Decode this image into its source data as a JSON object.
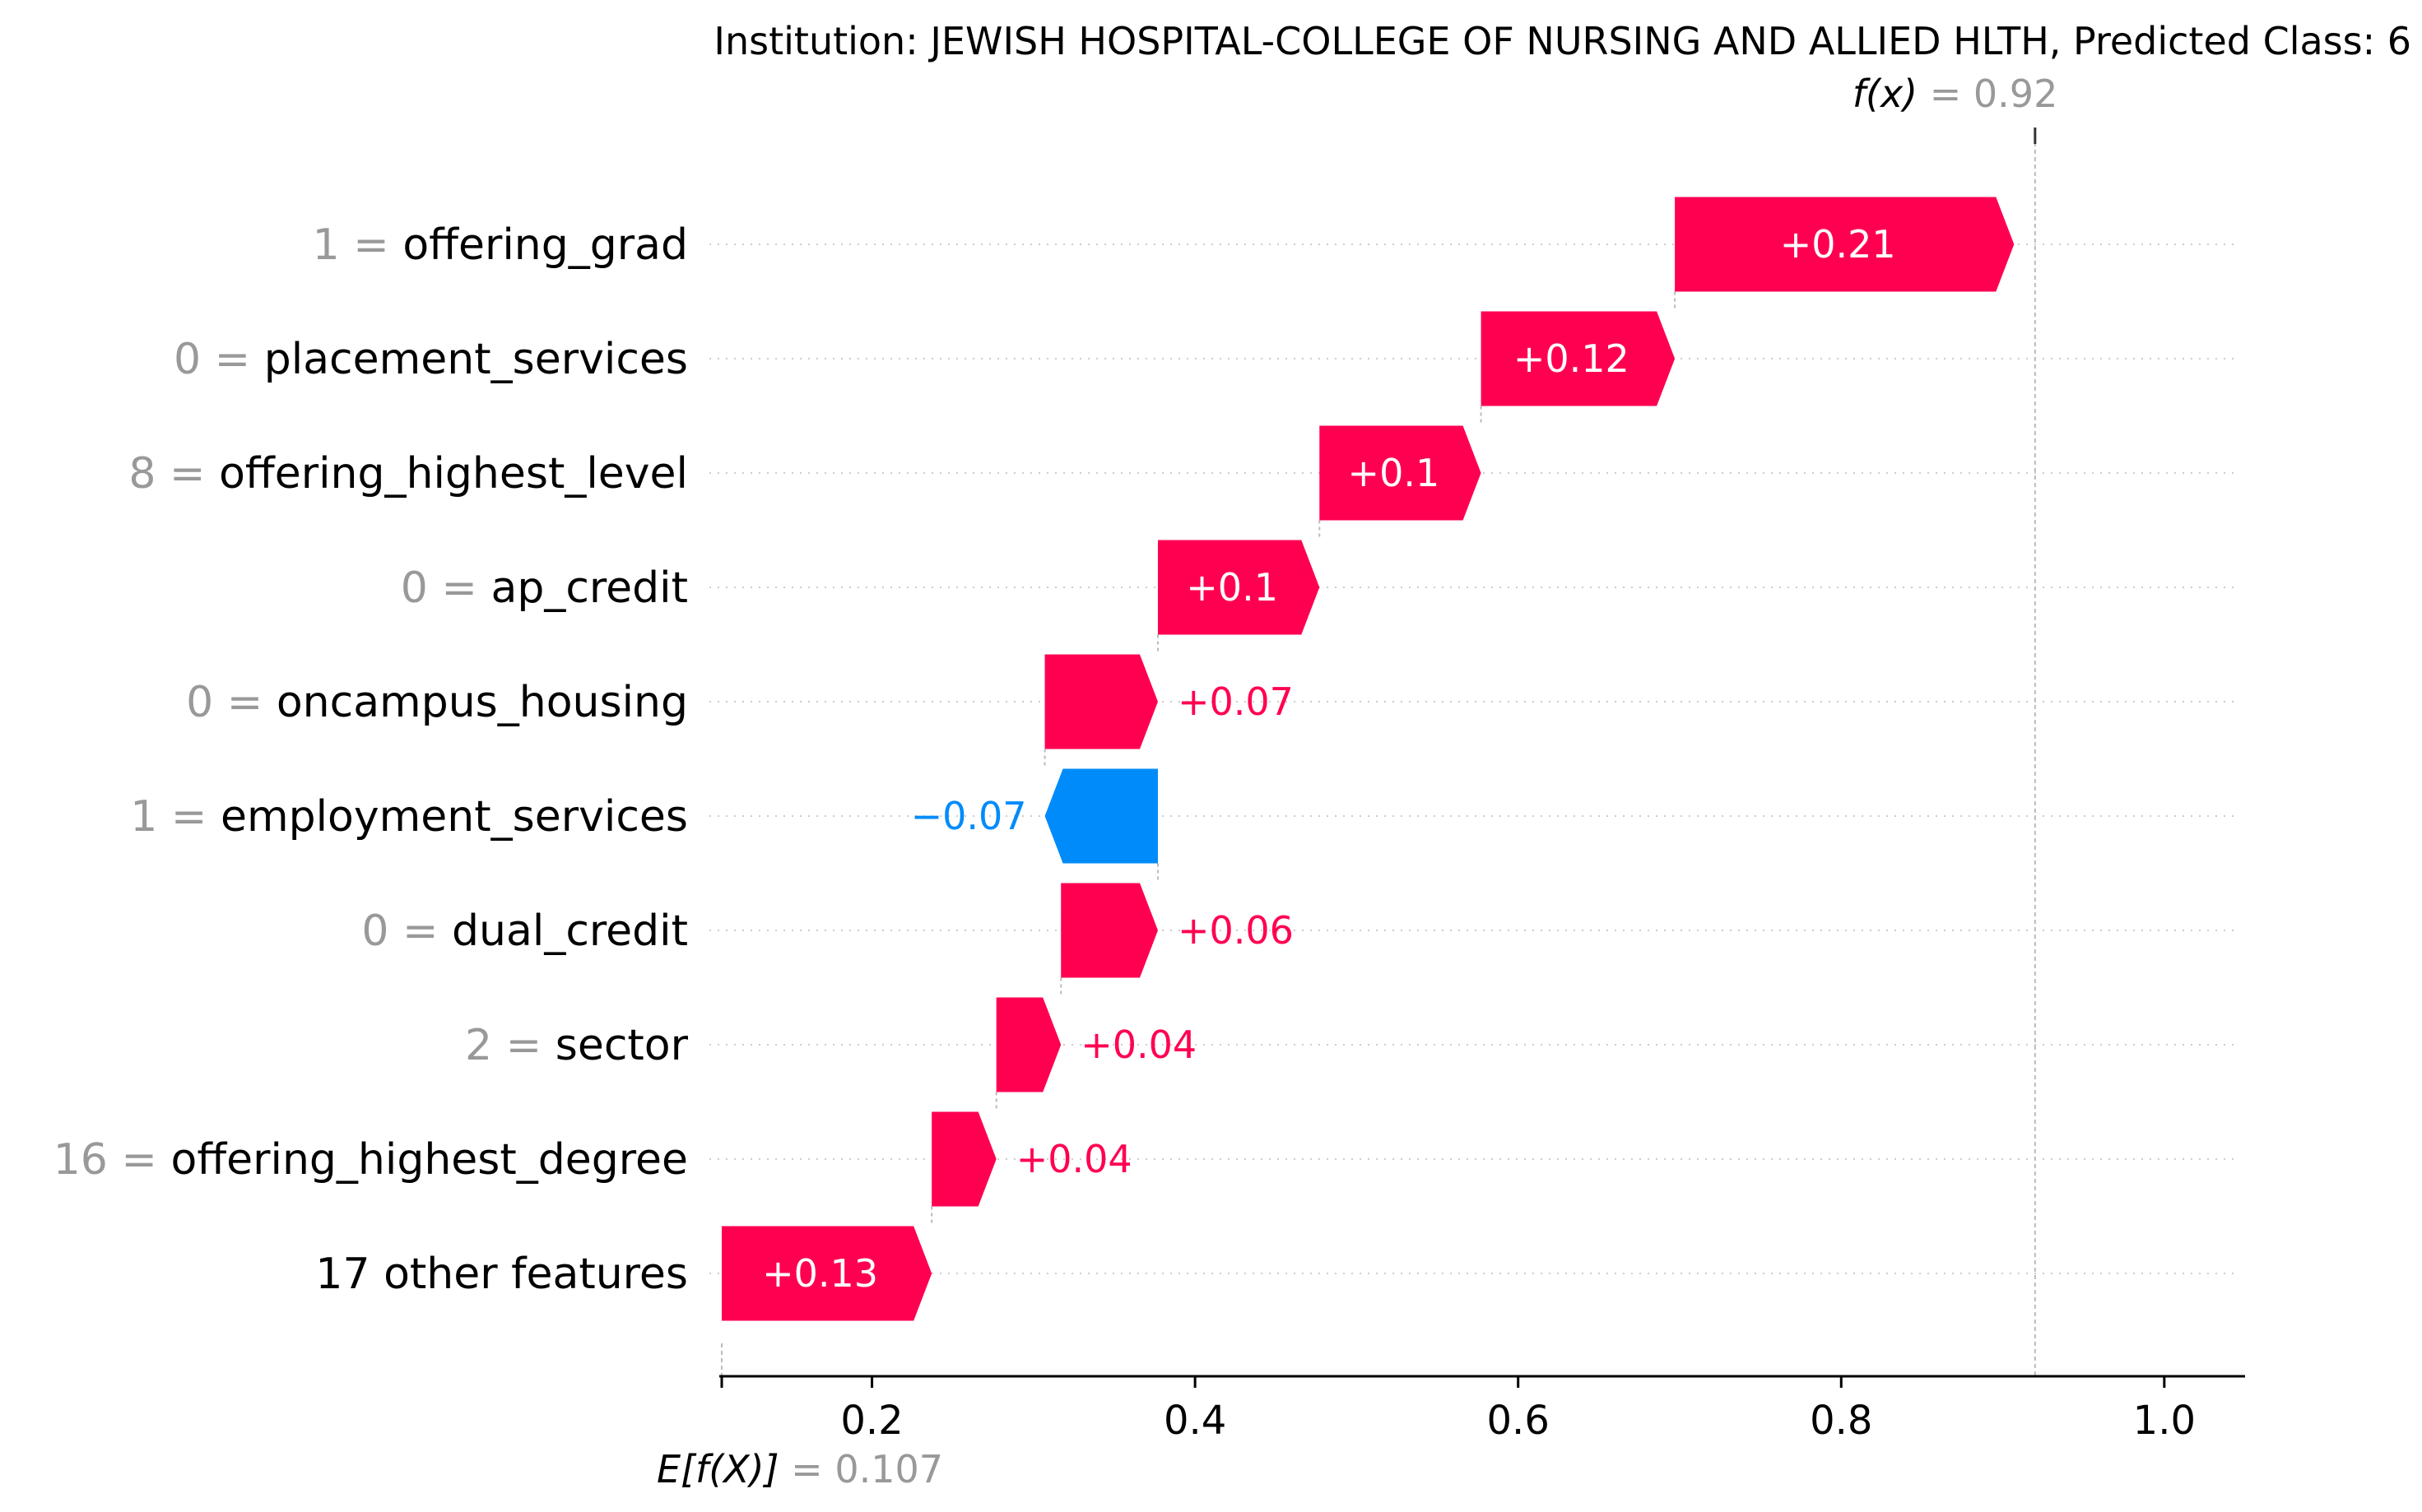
{
  "chart_data": {
    "type": "waterfall",
    "title": "Institution: JEWISH HOSPITAL-COLLEGE OF NURSING AND ALLIED HLTH, Predicted Class: 6",
    "base_value": 0.107,
    "base_label": "E[f(X)]",
    "base_value_label": "0.107",
    "output_value": 0.92,
    "output_label": "f(x)",
    "output_value_label": "0.92",
    "xlim": [
      0.107,
      1.05
    ],
    "xticks": [
      0.2,
      0.4,
      0.6,
      0.8,
      1.0
    ],
    "xtick_labels": [
      "0.2",
      "0.4",
      "0.6",
      "0.8",
      "1.0"
    ],
    "positive_color": "#ff0051",
    "negative_color": "#008bfb",
    "features": [
      {
        "value": "1",
        "name": "offering_grad",
        "contribution": 0.21,
        "label": "+0.21"
      },
      {
        "value": "0",
        "name": "placement_services",
        "contribution": 0.12,
        "label": "+0.12"
      },
      {
        "value": "8",
        "name": "offering_highest_level",
        "contribution": 0.1,
        "label": "+0.1"
      },
      {
        "value": "0",
        "name": "ap_credit",
        "contribution": 0.1,
        "label": "+0.1"
      },
      {
        "value": "0",
        "name": "oncampus_housing",
        "contribution": 0.07,
        "label": "+0.07"
      },
      {
        "value": "1",
        "name": "employment_services",
        "contribution": -0.07,
        "label": "−0.07"
      },
      {
        "value": "0",
        "name": "dual_credit",
        "contribution": 0.06,
        "label": "+0.06"
      },
      {
        "value": "2",
        "name": "sector",
        "contribution": 0.04,
        "label": "+0.04"
      },
      {
        "value": "16",
        "name": "offering_highest_degree",
        "contribution": 0.04,
        "label": "+0.04"
      },
      {
        "value": "",
        "name": "17 other features",
        "contribution": 0.13,
        "label": "+0.13"
      }
    ]
  }
}
